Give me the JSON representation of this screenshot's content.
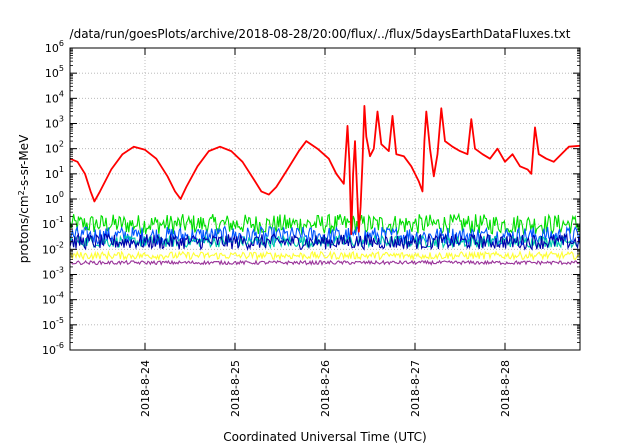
{
  "chart_data": {
    "type": "line",
    "title": "/data/run/goesPlots/archive/2018-08-28/20:00/flux/../flux/5daysEarthDataFluxes.txt",
    "xlabel": "Coordinated Universal Time (UTC)",
    "ylabel_parts": [
      "protons/cm",
      "2",
      "-s-sr-MeV"
    ],
    "yscale": "log",
    "ylim_exp": [
      -6,
      6
    ],
    "y_tick_labels": [
      {
        "base": "10",
        "exp": "-6"
      },
      {
        "base": "10",
        "exp": "-5"
      },
      {
        "base": "10",
        "exp": "-4"
      },
      {
        "base": "10",
        "exp": "-3"
      },
      {
        "base": "10",
        "exp": "-2"
      },
      {
        "base": "10",
        "exp": "-1"
      },
      {
        "base": "10",
        "exp": "0"
      },
      {
        "base": "10",
        "exp": "1"
      },
      {
        "base": "10",
        "exp": "2"
      },
      {
        "base": "10",
        "exp": "3"
      },
      {
        "base": "10",
        "exp": "4"
      },
      {
        "base": "10",
        "exp": "5"
      },
      {
        "base": "10",
        "exp": "6"
      }
    ],
    "x_range_days": [
      "2018-08-23T04:00",
      "2018-08-28T20:00"
    ],
    "x_tick_labels": [
      "2018-8-24",
      "2018-8-25",
      "2018-8-26",
      "2018-8-27",
      "2018-8-28"
    ],
    "grid": true,
    "series": [
      {
        "color": "#ff0000",
        "points": [
          [
            "2018-08-23T04:00",
            40
          ],
          [
            "2018-08-23T06:00",
            30
          ],
          [
            "2018-08-23T08:00",
            10
          ],
          [
            "2018-08-23T09:30",
            2
          ],
          [
            "2018-08-23T10:30",
            0.8
          ],
          [
            "2018-08-23T12:00",
            2
          ],
          [
            "2018-08-23T15:00",
            15
          ],
          [
            "2018-08-23T18:00",
            60
          ],
          [
            "2018-08-23T21:00",
            120
          ],
          [
            "2018-08-24T00:00",
            90
          ],
          [
            "2018-08-24T03:00",
            40
          ],
          [
            "2018-08-24T06:00",
            8
          ],
          [
            "2018-08-24T08:00",
            2
          ],
          [
            "2018-08-24T09:30",
            1
          ],
          [
            "2018-08-24T11:00",
            3
          ],
          [
            "2018-08-24T14:00",
            20
          ],
          [
            "2018-08-24T17:00",
            80
          ],
          [
            "2018-08-24T20:00",
            120
          ],
          [
            "2018-08-24T23:00",
            80
          ],
          [
            "2018-08-25T02:00",
            30
          ],
          [
            "2018-08-25T05:00",
            6
          ],
          [
            "2018-08-25T07:00",
            2
          ],
          [
            "2018-08-25T09:00",
            1.5
          ],
          [
            "2018-08-25T11:00",
            3
          ],
          [
            "2018-08-25T14:00",
            15
          ],
          [
            "2018-08-25T17:00",
            80
          ],
          [
            "2018-08-25T19:00",
            200
          ],
          [
            "2018-08-25T22:00",
            100
          ],
          [
            "2018-08-26T01:00",
            40
          ],
          [
            "2018-08-26T03:00",
            10
          ],
          [
            "2018-08-26T05:00",
            4
          ],
          [
            "2018-08-26T06:00",
            800
          ],
          [
            "2018-08-26T06:30",
            30
          ],
          [
            "2018-08-26T07:00",
            0.04
          ],
          [
            "2018-08-26T07:30",
            10
          ],
          [
            "2018-08-26T08:00",
            200
          ],
          [
            "2018-08-26T09:00",
            0.05
          ],
          [
            "2018-08-26T09:30",
            0.5
          ],
          [
            "2018-08-26T10:00",
            30
          ],
          [
            "2018-08-26T10:30",
            5000
          ],
          [
            "2018-08-26T11:00",
            300
          ],
          [
            "2018-08-26T12:00",
            50
          ],
          [
            "2018-08-26T13:00",
            100
          ],
          [
            "2018-08-26T14:00",
            3000
          ],
          [
            "2018-08-26T15:00",
            150
          ],
          [
            "2018-08-26T17:00",
            80
          ],
          [
            "2018-08-26T18:00",
            2000
          ],
          [
            "2018-08-26T19:00",
            60
          ],
          [
            "2018-08-26T21:00",
            50
          ],
          [
            "2018-08-26T23:00",
            20
          ],
          [
            "2018-08-27T01:00",
            5
          ],
          [
            "2018-08-27T02:00",
            2
          ],
          [
            "2018-08-27T02:30",
            200
          ],
          [
            "2018-08-27T03:00",
            3000
          ],
          [
            "2018-08-27T04:00",
            100
          ],
          [
            "2018-08-27T05:00",
            8
          ],
          [
            "2018-08-27T06:00",
            60
          ],
          [
            "2018-08-27T07:00",
            4000
          ],
          [
            "2018-08-27T08:00",
            200
          ],
          [
            "2018-08-27T10:00",
            120
          ],
          [
            "2018-08-27T12:00",
            80
          ],
          [
            "2018-08-27T14:00",
            60
          ],
          [
            "2018-08-27T15:00",
            1500
          ],
          [
            "2018-08-27T16:00",
            100
          ],
          [
            "2018-08-27T18:00",
            60
          ],
          [
            "2018-08-27T20:00",
            40
          ],
          [
            "2018-08-27T22:00",
            100
          ],
          [
            "2018-08-28T00:00",
            30
          ],
          [
            "2018-08-28T02:00",
            60
          ],
          [
            "2018-08-28T04:00",
            20
          ],
          [
            "2018-08-28T06:00",
            15
          ],
          [
            "2018-08-28T07:00",
            10
          ],
          [
            "2018-08-28T08:00",
            700
          ],
          [
            "2018-08-28T09:00",
            60
          ],
          [
            "2018-08-28T11:00",
            40
          ],
          [
            "2018-08-28T13:00",
            30
          ],
          [
            "2018-08-28T15:00",
            60
          ],
          [
            "2018-08-28T17:00",
            120
          ],
          [
            "2018-08-28T20:00",
            130
          ]
        ]
      },
      {
        "color": "#00dd00",
        "band": [
          0.04,
          0.25
        ]
      },
      {
        "color": "#0055ff",
        "band": [
          0.015,
          0.08
        ]
      },
      {
        "color": "#00ccaa",
        "band": [
          0.012,
          0.035
        ]
      },
      {
        "color": "#0000aa",
        "band": [
          0.01,
          0.04
        ]
      },
      {
        "color": "#ffff33",
        "band": [
          0.004,
          0.008
        ]
      },
      {
        "color": "#993399",
        "band": [
          0.0025,
          0.0035
        ]
      }
    ]
  }
}
